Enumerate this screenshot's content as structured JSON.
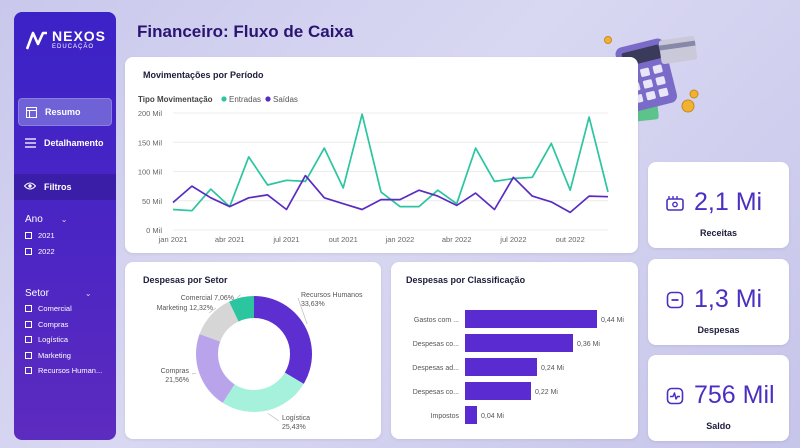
{
  "page_title": "Financeiro: Fluxo de Caixa",
  "logo": {
    "name": "NEXOS",
    "sub": "EDUCAÇÃO"
  },
  "nav": {
    "resumo": "Resumo",
    "detalhamento": "Detalhamento",
    "filtros": "Filtros"
  },
  "filters": {
    "ano": {
      "label": "Ano",
      "options": [
        "2021",
        "2022"
      ]
    },
    "setor": {
      "label": "Setor",
      "options": [
        "Comercial",
        "Compras",
        "Logística",
        "Marketing",
        "Recursos Human..."
      ]
    }
  },
  "kpis": [
    {
      "value": "2,1 Mi",
      "label": "Receitas",
      "icon": "wallet-icon"
    },
    {
      "value": "1,3 Mi",
      "label": "Despesas",
      "icon": "minus-icon"
    },
    {
      "value": "756 Mil",
      "label": "Saldo",
      "icon": "pulse-icon"
    }
  ],
  "colors": {
    "entradas": "#2bc5a0",
    "saidas": "#5a2bc0",
    "bars": "#5a2bd0",
    "accent": "#4c2fc2"
  },
  "chart_data": [
    {
      "type": "line",
      "title": "Movimentações por Período",
      "legend_title": "Tipo Movimentação",
      "legend_position": "top-left",
      "xlabels": [
        "jan 2021",
        "abr 2021",
        "jul 2021",
        "out 2021",
        "jan 2022",
        "abr 2022",
        "jul 2022",
        "out 2022"
      ],
      "yticks": [
        "0 Mil",
        "50 Mil",
        "100 Mil",
        "150 Mil",
        "200 Mil"
      ],
      "ylim": [
        0,
        200
      ],
      "grid": true,
      "series": [
        {
          "name": "Entradas",
          "values": [
            35,
            33,
            70,
            40,
            125,
            77,
            85,
            83,
            140,
            72,
            198,
            65,
            40,
            40,
            68,
            45,
            140,
            83,
            88,
            90,
            148,
            68,
            193,
            65
          ]
        },
        {
          "name": "Saídas",
          "values": [
            47,
            75,
            55,
            40,
            55,
            60,
            35,
            93,
            55,
            45,
            35,
            52,
            52,
            68,
            58,
            42,
            63,
            35,
            90,
            58,
            48,
            30,
            58,
            57
          ]
        }
      ]
    },
    {
      "type": "pie",
      "title": "Despesas por Setor",
      "donut": true,
      "slices": [
        {
          "label": "Recursos Humanos",
          "pct": "33,63%",
          "value": 33.63,
          "color": "#5d2fd0"
        },
        {
          "label": "Logística",
          "pct": "25,43%",
          "value": 25.43,
          "color": "#a6f1dc"
        },
        {
          "label": "Compras",
          "pct": "21,56%",
          "value": 21.56,
          "color": "#b9a4ec"
        },
        {
          "label": "Marketing",
          "pct": "12,32%",
          "value": 12.32,
          "color": "#d6d6d6"
        },
        {
          "label": "Comercial",
          "pct": "7,06%",
          "value": 7.06,
          "color": "#2bc5a0"
        }
      ]
    },
    {
      "type": "bar",
      "orientation": "horizontal",
      "title": "Despesas por Classificação",
      "categories": [
        "Gastos com ...",
        "Despesas co...",
        "Despesas ad...",
        "Despesas co...",
        "Impostos"
      ],
      "values": [
        0.44,
        0.36,
        0.24,
        0.22,
        0.04
      ],
      "value_labels": [
        "0,44 Mi",
        "0,36 Mi",
        "0,24 Mi",
        "0,22 Mi",
        "0,04 Mi"
      ]
    }
  ]
}
